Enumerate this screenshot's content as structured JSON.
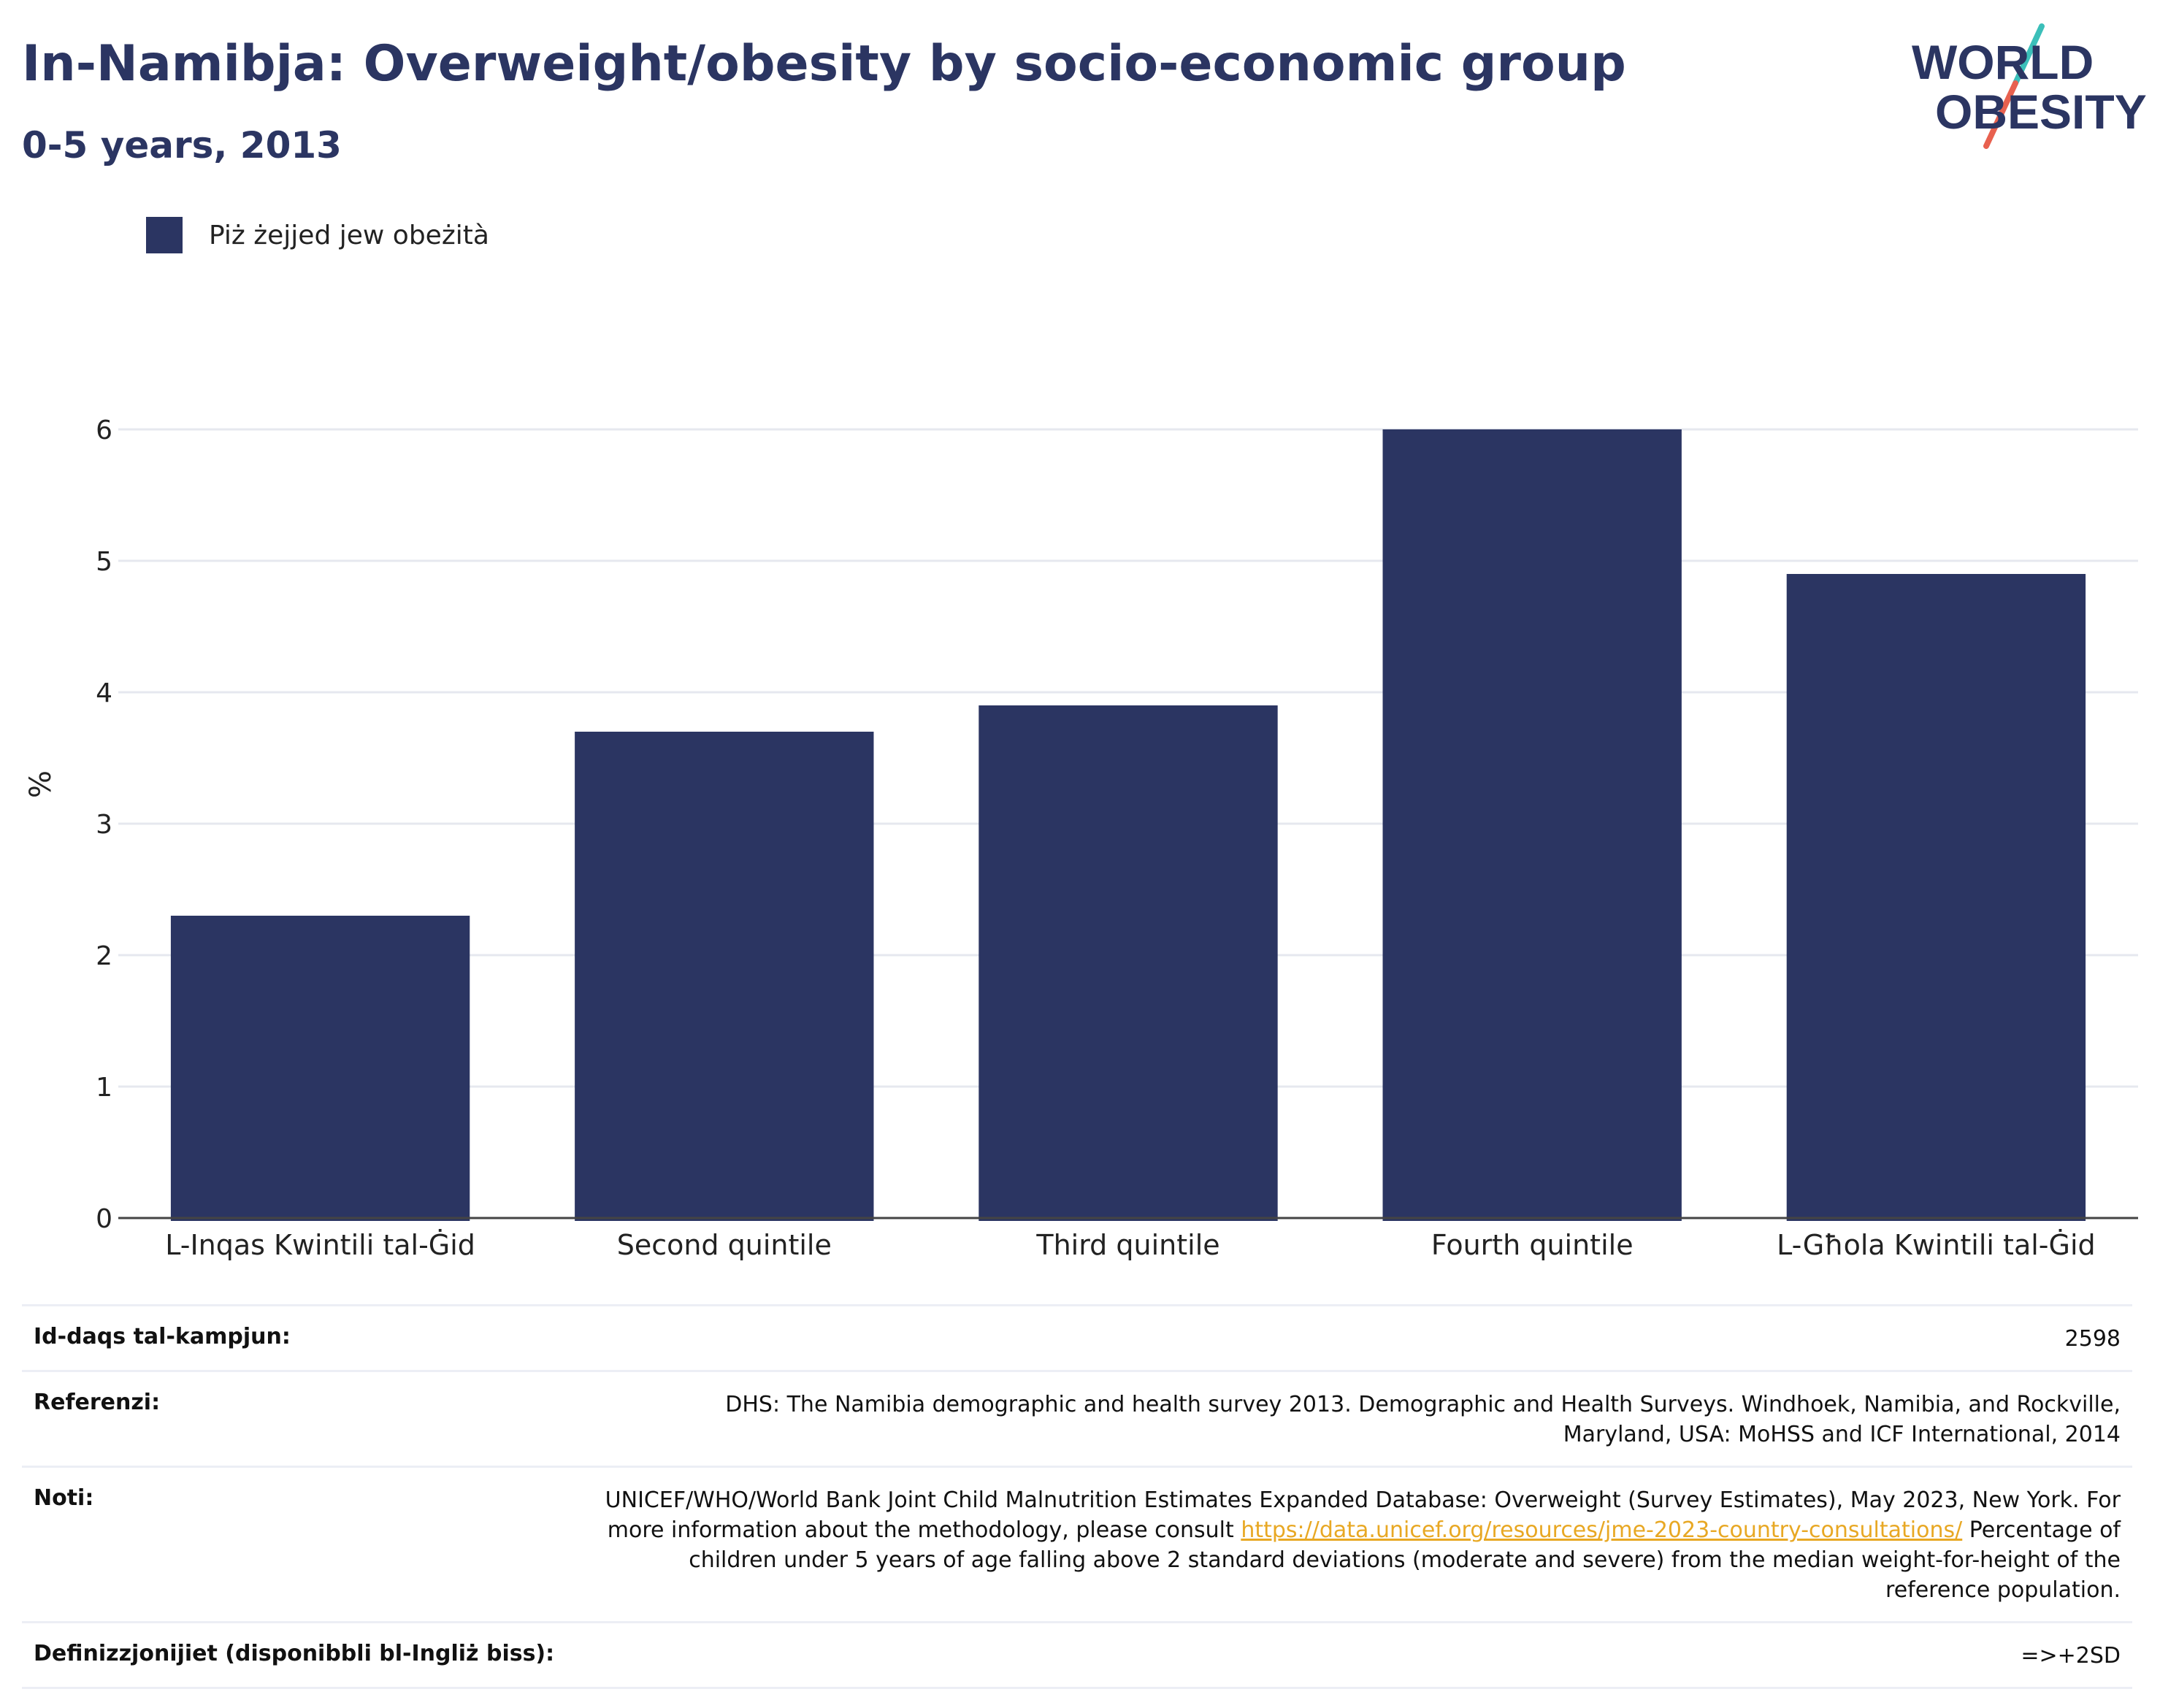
{
  "header": {
    "title": "In-Namibja: Overweight/obesity by socio-economic group",
    "subtitle": "0-5 years, 2013"
  },
  "logo": {
    "line1": "WORLD",
    "line2": "OBESITY",
    "colors": {
      "text": "#2b3562",
      "slash_teal": "#3bbfb9",
      "slash_red": "#e8614f"
    }
  },
  "legend": {
    "label": "Piż żejjed jew obeżità",
    "color": "#2b3562"
  },
  "chart_data": {
    "type": "bar",
    "categories": [
      "L-Inqas Kwintili tal-Ġid",
      "Second quintile",
      "Third quintile",
      "Fourth quintile",
      "L-Għola Kwintili tal-Ġid"
    ],
    "series": [
      {
        "name": "Piż żejjed jew obeżità",
        "values": [
          2.3,
          3.7,
          3.9,
          6.0,
          4.9
        ],
        "color": "#2b3562"
      }
    ],
    "ylabel": "%",
    "xlabel": "",
    "ylim": [
      0,
      6.6
    ],
    "yticks": [
      0,
      1,
      2,
      3,
      4,
      5,
      6
    ],
    "grid": true,
    "legend_position": "top-left"
  },
  "info": {
    "sample_size": {
      "label": "Id-daqs tal-kampjun:",
      "value": "2598"
    },
    "references": {
      "label": "Referenzi:",
      "value": "DHS: The Namibia demographic and health survey 2013. Demographic and Health Surveys. Windhoek, Namibia, and Rockville, Maryland, USA: MoHSS and ICF International, 2014"
    },
    "notes": {
      "label": "Noti:",
      "text_before": "UNICEF/WHO/World Bank Joint Child Malnutrition Estimates Expanded Database: Overweight (Survey Estimates), May 2023, New York. For more information about the methodology, please consult ",
      "link": "https://data.unicef.org/resources/jme-2023-country-consultations/",
      "text_after": " Percentage of children under 5 years of age falling above 2 standard deviations (moderate and severe) from the median weight-for-height of the reference population."
    },
    "definitions": {
      "label": "Definizzjonijiet (disponibbli bl-Ingliż biss):",
      "value": "=>+2SD"
    }
  }
}
